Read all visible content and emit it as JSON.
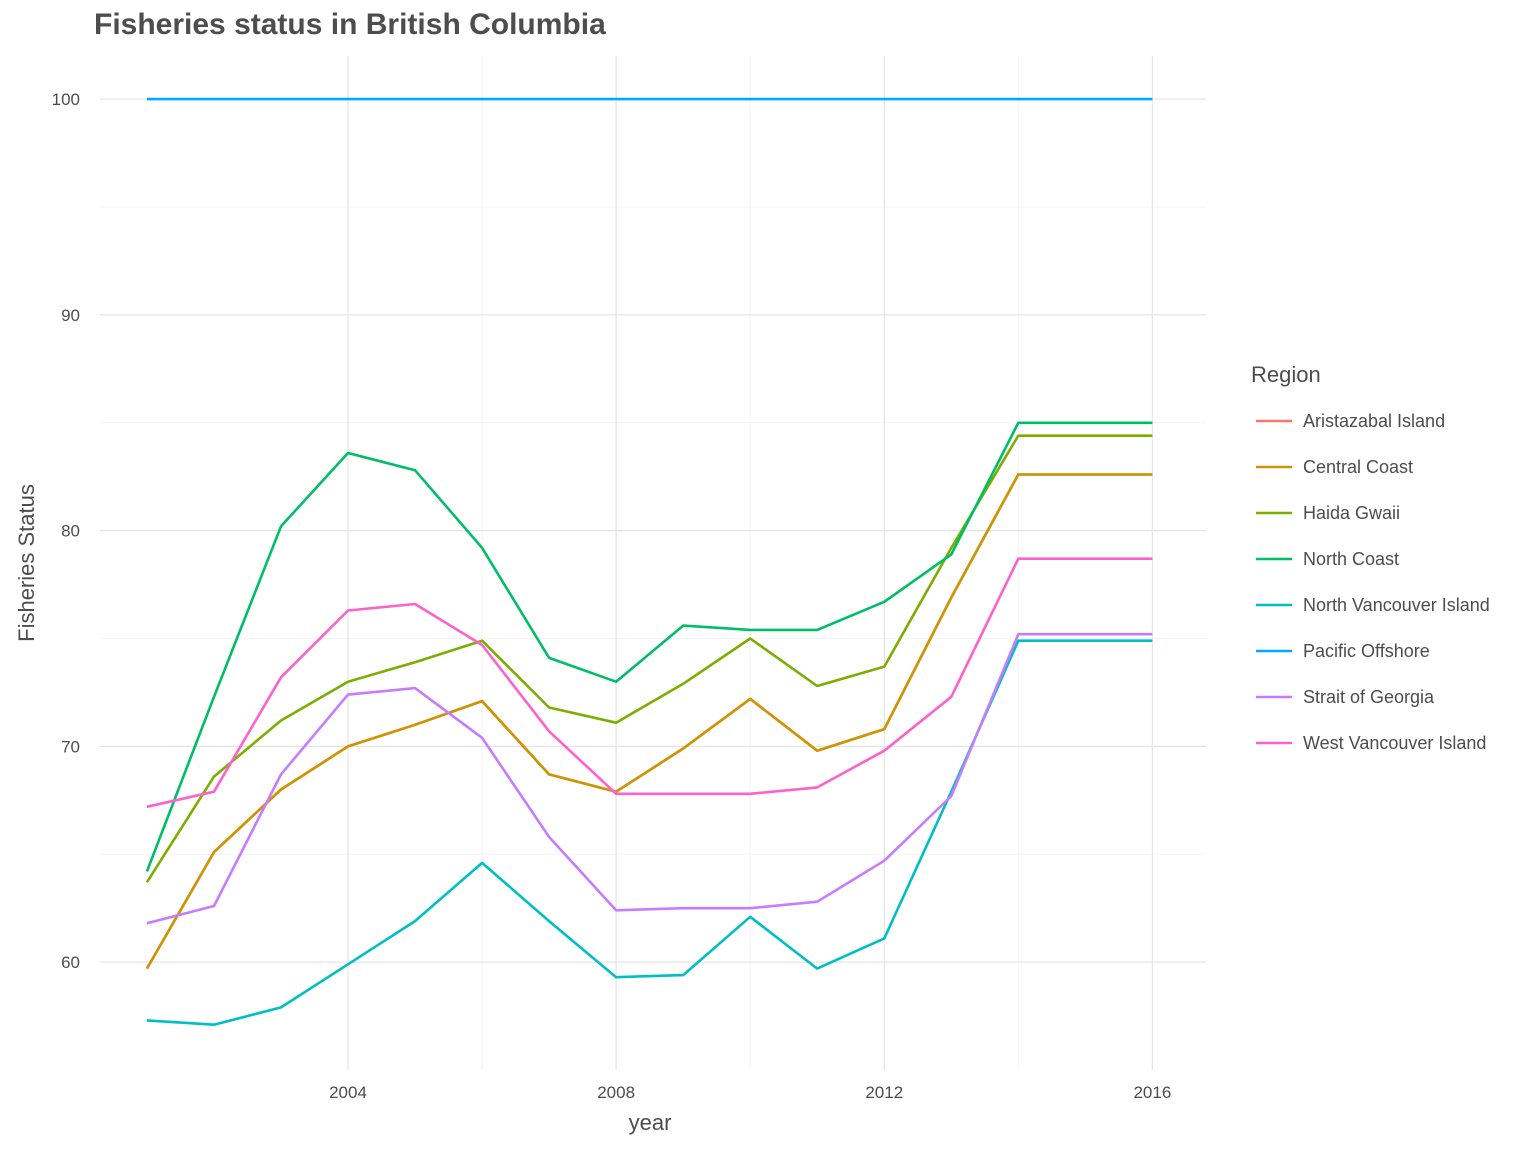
{
  "chart_data": {
    "type": "line",
    "title": "Fisheries status in British Columbia",
    "xlabel": "year",
    "ylabel": "Fisheries Status",
    "x": [
      2001,
      2002,
      2003,
      2004,
      2005,
      2006,
      2007,
      2008,
      2009,
      2010,
      2011,
      2012,
      2013,
      2014,
      2015,
      2016
    ],
    "xlim": [
      2000.3,
      2016.8
    ],
    "ylim": [
      55,
      102
    ],
    "x_ticks": [
      2004,
      2008,
      2012,
      2016
    ],
    "x_tick_labels": [
      "2004",
      "2008",
      "2012",
      "2016"
    ],
    "y_ticks": [
      60,
      70,
      80,
      90,
      100
    ],
    "y_tick_labels": [
      "60",
      "70",
      "80",
      "90",
      "100"
    ],
    "grid": true,
    "legend": {
      "title": "Region",
      "position": "right"
    },
    "series": [
      {
        "name": "Aristazabal Island",
        "color": "#F8766D",
        "values": [
          59.7,
          65.1,
          68.0,
          70.0,
          71.0,
          72.1,
          68.7,
          67.9,
          69.9,
          72.2,
          69.8,
          70.8,
          76.9,
          82.6,
          82.6,
          82.6
        ]
      },
      {
        "name": "Central Coast",
        "color": "#CD9600",
        "values": [
          59.7,
          65.1,
          68.0,
          70.0,
          71.0,
          72.1,
          68.7,
          67.9,
          69.9,
          72.2,
          69.8,
          70.8,
          76.9,
          82.6,
          82.6,
          82.6
        ]
      },
      {
        "name": "Haida Gwaii",
        "color": "#7CAE00",
        "values": [
          63.7,
          68.6,
          71.2,
          73.0,
          73.9,
          74.9,
          71.8,
          71.1,
          72.9,
          75.0,
          72.8,
          73.7,
          79.2,
          84.4,
          84.4,
          84.4
        ]
      },
      {
        "name": "North Coast",
        "color": "#00BE67",
        "values": [
          64.2,
          72.3,
          80.2,
          83.6,
          82.8,
          79.2,
          74.1,
          73.0,
          75.6,
          75.4,
          75.4,
          76.7,
          78.9,
          85.0,
          85.0,
          85.0
        ]
      },
      {
        "name": "North Vancouver Island",
        "color": "#00BFC4",
        "values": [
          57.3,
          57.1,
          57.9,
          59.9,
          61.9,
          64.6,
          61.9,
          59.3,
          59.4,
          62.1,
          59.7,
          61.1,
          67.9,
          74.9,
          74.9,
          74.9
        ]
      },
      {
        "name": "Pacific Offshore",
        "color": "#00A9FF",
        "values": [
          100,
          100,
          100,
          100,
          100,
          100,
          100,
          100,
          100,
          100,
          100,
          100,
          100,
          100,
          100,
          100
        ]
      },
      {
        "name": "Strait of Georgia",
        "color": "#C77CFF",
        "values": [
          61.8,
          62.6,
          68.7,
          72.4,
          72.7,
          70.4,
          65.8,
          62.4,
          62.5,
          62.5,
          62.8,
          64.7,
          67.7,
          75.2,
          75.2,
          75.2
        ]
      },
      {
        "name": "West Vancouver Island",
        "color": "#FF61CC",
        "values": [
          67.2,
          67.9,
          73.2,
          76.3,
          76.6,
          74.7,
          70.7,
          67.8,
          67.8,
          67.8,
          68.1,
          69.8,
          72.3,
          78.7,
          78.7,
          78.7
        ]
      }
    ]
  }
}
